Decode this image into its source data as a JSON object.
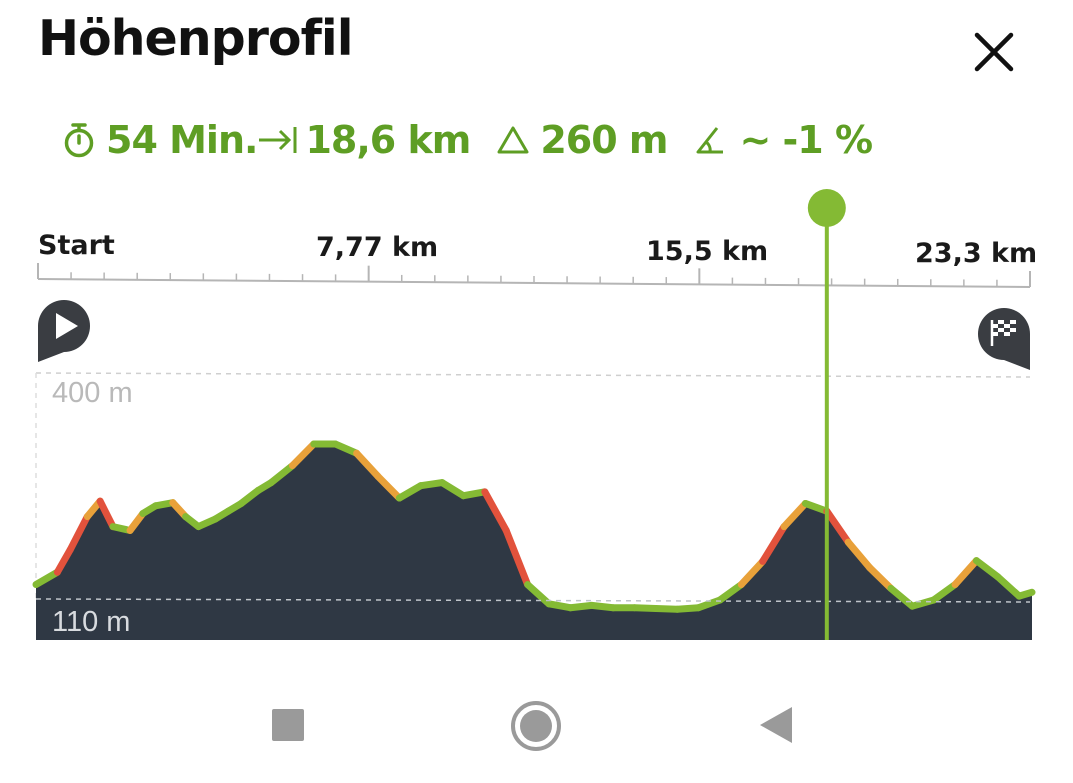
{
  "header": {
    "title": "Höhenprofil"
  },
  "stats": {
    "duration": "54 Min.",
    "distance": "18,6 km",
    "ascent": "260 m",
    "gradient": "~ -1 %"
  },
  "ruler": {
    "start": "Start",
    "mark1": "7,77 km",
    "mark2": "15,5 km",
    "mark3": "23,3 km"
  },
  "chart_data": {
    "type": "area",
    "xlabel": "",
    "ylabel": "",
    "ylim_labels": [
      "400 m",
      "110 m"
    ],
    "y_ticks": [
      {
        "value": 400,
        "label": "400 m"
      },
      {
        "value": 110,
        "label": "110 m"
      }
    ],
    "x_ticks": [
      {
        "value": 0,
        "label": "Start"
      },
      {
        "value": 7.77,
        "label": "7,77 km"
      },
      {
        "value": 15.5,
        "label": "15,5 km"
      },
      {
        "value": 23.3,
        "label": "23,3 km"
      }
    ],
    "xlim": [
      0,
      23.3
    ],
    "ylim": [
      75,
      420
    ],
    "x": [
      0,
      0.5,
      0.8,
      1.2,
      1.5,
      1.8,
      2.2,
      2.5,
      2.8,
      3.2,
      3.5,
      3.8,
      4.2,
      4.5,
      4.8,
      5.2,
      5.5,
      6.0,
      6.5,
      7.0,
      7.5,
      8.0,
      8.5,
      9.0,
      9.5,
      10.0,
      10.5,
      11.0,
      11.5,
      12.0,
      12.5,
      13.0,
      13.5,
      14.0,
      14.5,
      15.0,
      15.5,
      16.0,
      16.5,
      17.0,
      17.5,
      18.0,
      18.5,
      19.0,
      19.5,
      20.0,
      20.5,
      21.0,
      21.5,
      22.0,
      22.5,
      23.0,
      23.3
    ],
    "y": [
      130,
      146,
      175,
      218,
      238,
      205,
      200,
      222,
      232,
      236,
      218,
      205,
      215,
      225,
      235,
      252,
      262,
      284,
      312,
      312,
      300,
      270,
      242,
      258,
      262,
      245,
      250,
      200,
      130,
      105,
      100,
      103,
      100,
      100,
      99,
      98,
      100,
      110,
      130,
      160,
      205,
      235,
      225,
      185,
      152,
      125,
      102,
      110,
      130,
      161,
      140,
      115,
      120
    ],
    "marker_x": 18.5,
    "colors": {
      "fill": "#2f3844",
      "line": "#84ba34",
      "marker": "#84ba34",
      "steep": "#e2523c",
      "moderate": "#e8a13a"
    }
  }
}
